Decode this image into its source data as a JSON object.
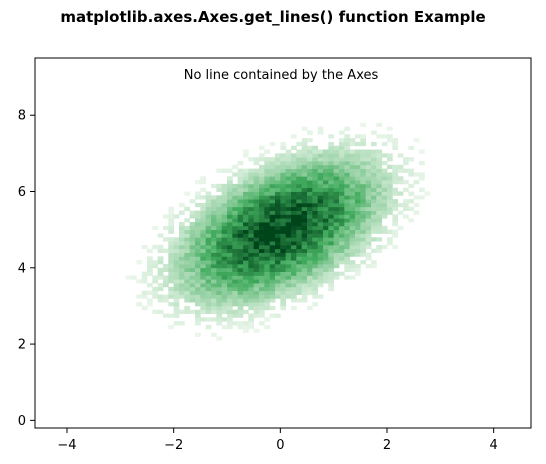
{
  "chart_data": {
    "type": "heatmap",
    "title": "matplotlib.axes.Axes.get_lines() function Example",
    "annotation": "No line contained by the Axes",
    "xlabel": "",
    "ylabel": "",
    "xlim": [
      -4.6,
      4.7
    ],
    "ylim": [
      -0.2,
      9.5
    ],
    "xticks": [
      -4,
      -2,
      0,
      2,
      4
    ],
    "yticks": [
      0,
      2,
      4,
      6,
      8
    ],
    "grid": false,
    "colormap": "Greens",
    "distribution": {
      "kind": "bivariate-normal-2d-histogram",
      "center": [
        0,
        5
      ],
      "std": [
        1,
        1
      ],
      "correlation": 0.5
    },
    "colors": {
      "low": "#f7fcf5",
      "mid": "#41ab5d",
      "high": "#00441b"
    }
  }
}
